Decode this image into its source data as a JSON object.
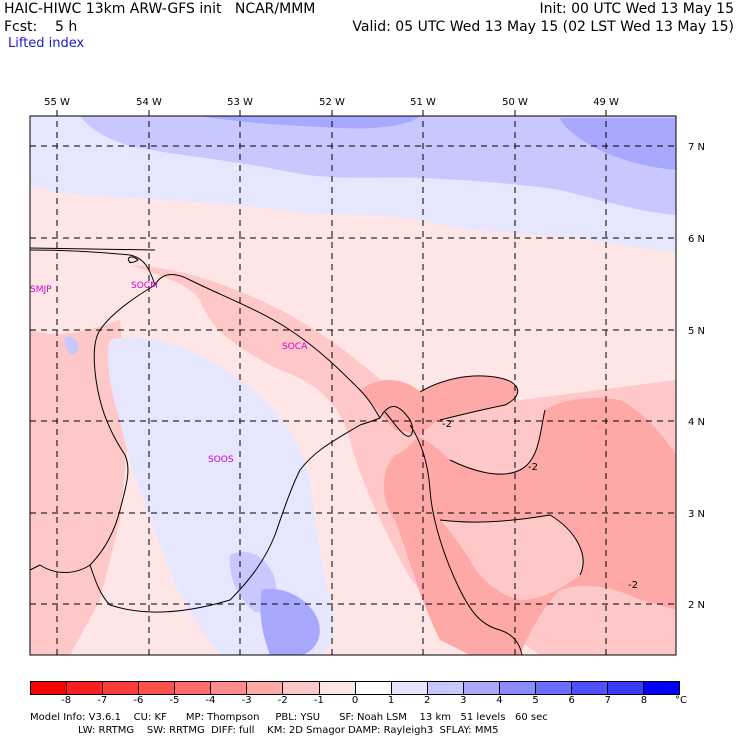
{
  "header": {
    "title_left": "HAIC-HIWC 13km ARW-GFS init   NCAR/MMM",
    "forecast": "Fcst:    5 h",
    "field": "Lifted index",
    "init": "Init: 00 UTC Wed 13 May 15",
    "valid": "Valid: 05 UTC Wed 13 May 15 (02 LST Wed 13 May 15)"
  },
  "map": {
    "lon_labels": [
      "55 W",
      "54 W",
      "53 W",
      "52 W",
      "51 W",
      "50 W",
      "49 W"
    ],
    "lat_labels": [
      "7 N",
      "6 N",
      "5 N",
      "4 N",
      "3 N",
      "2 N"
    ],
    "region_labels": [
      "SMJP",
      "SOCM",
      "SOCA",
      "SOOS"
    ],
    "contour_labels": [
      "-2",
      "-2",
      "-2"
    ],
    "colors": {
      "land_border": "#000000",
      "region_label": "#cc00cc",
      "gridline": "#000000"
    }
  },
  "colorbar": {
    "ticks": [
      "-8",
      "-7",
      "-6",
      "-5",
      "-4",
      "-3",
      "-2",
      "-1",
      "0",
      "1",
      "2",
      "3",
      "4",
      "5",
      "6",
      "7",
      "8"
    ],
    "unit": "°C",
    "colors": [
      "#ff0000",
      "#ff2020",
      "#ff3a3a",
      "#ff5050",
      "#ff6c6c",
      "#ff8c8c",
      "#ffa8a8",
      "#ffc8c8",
      "#ffe6e6",
      "#ffffff",
      "#e6e6ff",
      "#c8c8ff",
      "#a8a8ff",
      "#8c8cff",
      "#6c6cff",
      "#5050ff",
      "#3a3aff",
      "#0000ff"
    ]
  },
  "model_info": {
    "line1": "Model Info: V3.6.1    CU: KF      MP: Thompson     PBL: YSU      SF: Noah LSM    13 km   51 levels   60 sec",
    "line2": "LW: RRTMG    SW: RRTMG  DIFF: full    KM: 2D Smagor DAMP: Rayleigh3  SFLAY: MM5"
  }
}
